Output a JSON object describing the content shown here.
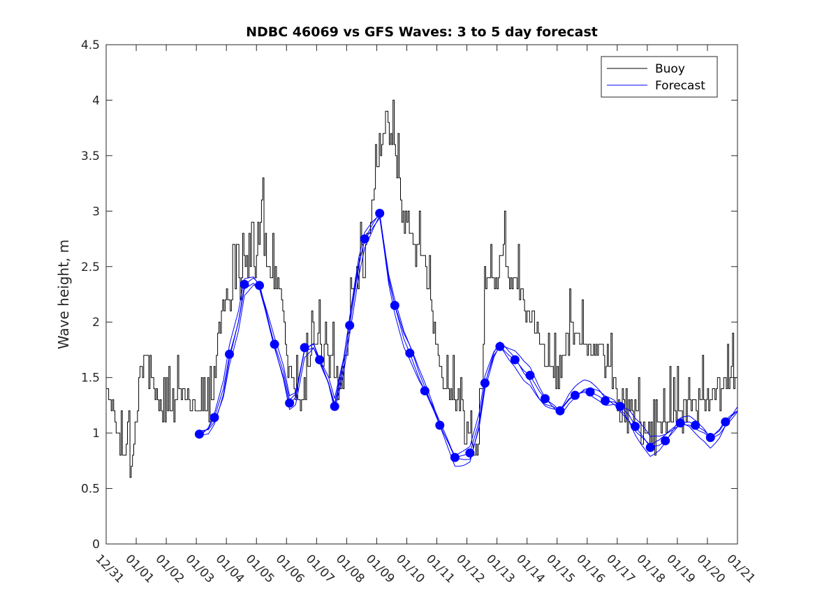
{
  "chart_data": {
    "type": "line",
    "title": "NDBC 46069 vs GFS Waves: 3 to 5 day forecast",
    "xlabel": "",
    "ylabel": "Wave height, m",
    "xlim": [
      0,
      21
    ],
    "ylim": [
      0,
      4.5
    ],
    "x_unit": "days since 12/31",
    "x_ticks": [
      0,
      1,
      2,
      3,
      4,
      5,
      6,
      7,
      8,
      9,
      10,
      11,
      12,
      13,
      14,
      15,
      16,
      17,
      18,
      19,
      20,
      21
    ],
    "x_tick_labels": [
      "12/31",
      "01/01",
      "01/02",
      "01/03",
      "01/04",
      "01/05",
      "01/06",
      "01/07",
      "01/08",
      "01/09",
      "01/10",
      "01/11",
      "01/12",
      "01/13",
      "01/14",
      "01/15",
      "01/16",
      "01/17",
      "01/18",
      "01/19",
      "01/20",
      "01/21"
    ],
    "y_ticks": [
      0,
      0.5,
      1,
      1.5,
      2,
      2.5,
      3,
      3.5,
      4,
      4.5
    ],
    "y_tick_labels": [
      "0",
      "0.5",
      "1",
      "1.5",
      "2",
      "2.5",
      "3",
      "3.5",
      "4",
      "4.5"
    ],
    "grid": false,
    "legend_position": "top-right",
    "series": [
      {
        "name": "Buoy",
        "color": "#000000",
        "style": "step-noisy",
        "x": [
          0,
          0.1,
          0.25,
          0.4,
          0.55,
          0.7,
          0.85,
          1.0,
          1.1,
          1.2,
          1.3,
          1.4,
          1.5,
          1.6,
          1.7,
          1.8,
          1.9,
          2.0,
          2.2,
          2.4,
          2.6,
          2.8,
          3.0,
          3.2,
          3.4,
          3.5,
          3.6,
          3.7,
          3.8,
          3.9,
          4.0,
          4.1,
          4.2,
          4.4,
          4.6,
          4.8,
          5.0,
          5.1,
          5.2,
          5.3,
          5.4,
          5.5,
          5.6,
          5.8,
          6.0,
          6.2,
          6.4,
          6.6,
          6.8,
          7.0,
          7.2,
          7.4,
          7.6,
          7.8,
          8.0,
          8.2,
          8.4,
          8.6,
          8.8,
          9.0,
          9.2,
          9.3,
          9.5,
          9.7,
          10.0,
          10.2,
          10.4,
          10.6,
          10.8,
          11.0,
          11.2,
          11.4,
          11.6,
          11.8,
          12.0,
          12.2,
          12.4,
          12.6,
          12.8,
          13.0,
          13.2,
          13.4,
          13.6,
          13.8,
          14.0,
          14.2,
          14.4,
          14.6,
          14.8,
          15.0,
          15.2,
          15.4,
          15.6,
          15.8,
          16.0,
          16.2,
          16.4,
          16.6,
          16.8,
          17.0,
          17.2,
          17.4,
          17.6,
          17.8,
          18.0,
          18.2,
          18.4,
          18.6,
          18.8,
          19.0,
          19.2,
          19.4,
          19.6,
          19.8,
          20.0,
          20.2,
          20.4,
          20.6,
          20.8,
          21.0
        ],
        "values": [
          1.35,
          1.3,
          1.15,
          1.0,
          0.85,
          0.75,
          0.75,
          1.1,
          1.45,
          1.7,
          1.75,
          1.7,
          1.55,
          1.4,
          1.3,
          1.25,
          1.2,
          1.2,
          1.3,
          1.35,
          1.3,
          1.25,
          1.2,
          1.15,
          1.15,
          1.3,
          1.6,
          1.9,
          2.1,
          2.2,
          2.25,
          2.2,
          2.3,
          2.45,
          2.5,
          2.45,
          2.5,
          2.75,
          2.95,
          2.7,
          2.5,
          2.45,
          2.5,
          2.25,
          1.7,
          1.55,
          1.2,
          1.5,
          1.65,
          1.75,
          1.85,
          1.7,
          1.6,
          1.5,
          1.75,
          2.3,
          2.55,
          2.65,
          2.9,
          3.4,
          3.6,
          3.9,
          3.7,
          3.3,
          2.9,
          2.8,
          2.65,
          2.5,
          2.1,
          1.75,
          1.5,
          1.35,
          1.3,
          1.25,
          1.0,
          0.8,
          0.95,
          2.3,
          2.4,
          2.45,
          2.6,
          2.4,
          2.35,
          2.25,
          2.15,
          2.05,
          1.9,
          1.65,
          1.55,
          1.5,
          1.75,
          1.9,
          1.95,
          1.85,
          1.85,
          1.75,
          1.75,
          1.6,
          1.45,
          1.35,
          1.3,
          1.25,
          1.2,
          1.1,
          1.0,
          0.95,
          1.0,
          1.1,
          1.15,
          1.2,
          1.2,
          1.25,
          1.3,
          1.3,
          1.3,
          1.35,
          1.4,
          1.45,
          1.5,
          1.5
        ]
      },
      {
        "name": "Forecast",
        "color": "#0000ff",
        "style": "ensemble-lines",
        "x": [
          3.1,
          3.4,
          3.6,
          3.9,
          4.1,
          4.4,
          4.6,
          4.9,
          5.1,
          5.3,
          5.6,
          5.9,
          6.1,
          6.3,
          6.6,
          6.9,
          7.1,
          7.4,
          7.6,
          7.9,
          8.1,
          8.4,
          8.6,
          8.9,
          9.1,
          9.4,
          9.6,
          9.9,
          10.1,
          10.4,
          10.6,
          10.9,
          11.1,
          11.4,
          11.6,
          11.9,
          12.1,
          12.4,
          12.6,
          12.9,
          13.1,
          13.4,
          13.6,
          13.9,
          14.1,
          14.4,
          14.6,
          14.9,
          15.1,
          15.4,
          15.6,
          15.9,
          16.1,
          16.4,
          16.6,
          16.9,
          17.1,
          17.4,
          17.6,
          17.9,
          18.1,
          18.4,
          18.6,
          18.9,
          19.1,
          19.4,
          19.6,
          19.9,
          20.1,
          20.4,
          20.6,
          21.0
        ],
        "values": [
          0.99,
          1.04,
          1.14,
          1.4,
          1.7,
          2.0,
          2.3,
          2.35,
          2.3,
          2.1,
          1.8,
          1.55,
          1.3,
          1.35,
          1.76,
          1.8,
          1.66,
          1.45,
          1.24,
          1.6,
          1.97,
          2.5,
          2.75,
          2.9,
          2.98,
          2.4,
          2.15,
          1.85,
          1.72,
          1.5,
          1.38,
          1.2,
          1.07,
          0.9,
          0.78,
          0.8,
          0.82,
          1.1,
          1.45,
          1.7,
          1.78,
          1.7,
          1.66,
          1.56,
          1.52,
          1.38,
          1.31,
          1.25,
          1.2,
          1.3,
          1.34,
          1.38,
          1.37,
          1.33,
          1.29,
          1.28,
          1.24,
          1.16,
          1.06,
          0.95,
          0.87,
          0.89,
          0.93,
          1.02,
          1.09,
          1.1,
          1.07,
          1.02,
          0.96,
          1.02,
          1.1,
          1.2
        ]
      }
    ],
    "forecast_markers": {
      "x": [
        3.1,
        3.6,
        4.1,
        4.6,
        5.1,
        5.6,
        6.1,
        6.6,
        7.1,
        7.6,
        8.1,
        8.6,
        9.1,
        9.6,
        10.1,
        10.6,
        11.1,
        11.6,
        12.1,
        12.6,
        13.1,
        13.6,
        14.1,
        14.6,
        15.1,
        15.6,
        16.1,
        16.6,
        17.1,
        17.6,
        18.1,
        18.6,
        19.1,
        19.6,
        20.1,
        20.6
      ],
      "values": [
        0.99,
        1.14,
        1.71,
        2.34,
        2.33,
        1.8,
        1.27,
        1.77,
        1.66,
        1.24,
        1.97,
        2.75,
        2.98,
        2.15,
        1.72,
        1.38,
        1.07,
        0.78,
        0.82,
        1.45,
        1.78,
        1.66,
        1.52,
        1.31,
        1.2,
        1.34,
        1.37,
        1.29,
        1.24,
        1.06,
        0.87,
        0.93,
        1.09,
        1.07,
        0.96,
        1.1
      ]
    },
    "legend": [
      "Buoy",
      "Forecast"
    ]
  }
}
